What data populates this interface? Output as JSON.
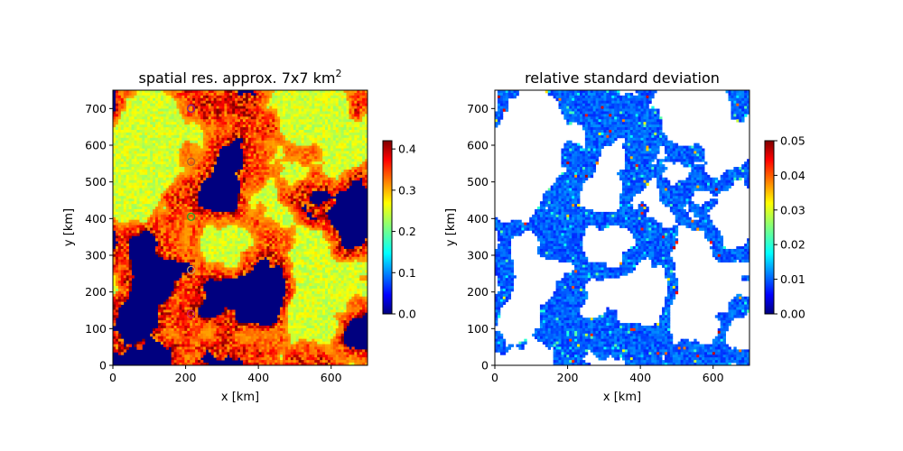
{
  "chart_data": [
    {
      "type": "heatmap",
      "title": "spatial res. approx. 7x7 km",
      "title_superscript": "2",
      "xlabel": "x [km]",
      "ylabel": "y [km]",
      "xlim": [
        0,
        700
      ],
      "ylim": [
        0,
        750
      ],
      "xticks": [
        0,
        200,
        400,
        600
      ],
      "yticks": [
        0,
        100,
        200,
        300,
        400,
        500,
        600,
        700
      ],
      "colormap": "jet",
      "colorbar": {
        "min": 0.0,
        "max": 0.42,
        "ticks": [
          "0.0",
          "0.1",
          "0.2",
          "0.3",
          "0.4"
        ],
        "tick_values": [
          0.0,
          0.1,
          0.2,
          0.3,
          0.4
        ]
      },
      "markers": [
        {
          "x": 215,
          "y": 700,
          "color": "#7a2a8a"
        },
        {
          "x": 215,
          "y": 555,
          "color": "#b05a2a"
        },
        {
          "x": 215,
          "y": 405,
          "color": "#2ca02c"
        },
        {
          "x": 215,
          "y": 260,
          "color": "#c8a060"
        },
        {
          "x": 215,
          "y": 140,
          "color": "#d02060"
        }
      ]
    },
    {
      "type": "heatmap",
      "title": "relative standard deviation",
      "xlabel": "x [km]",
      "ylabel": "y [km]",
      "xlim": [
        0,
        700
      ],
      "ylim": [
        0,
        750
      ],
      "xticks": [
        0,
        200,
        400,
        600
      ],
      "yticks": [
        0,
        100,
        200,
        300,
        400,
        500,
        600,
        700
      ],
      "colormap": "jet",
      "colorbar": {
        "min": 0.0,
        "max": 0.05,
        "ticks": [
          "0.00",
          "0.01",
          "0.02",
          "0.03",
          "0.04",
          "0.05"
        ],
        "tick_values": [
          0.0,
          0.01,
          0.02,
          0.03,
          0.04,
          0.05
        ]
      }
    }
  ]
}
